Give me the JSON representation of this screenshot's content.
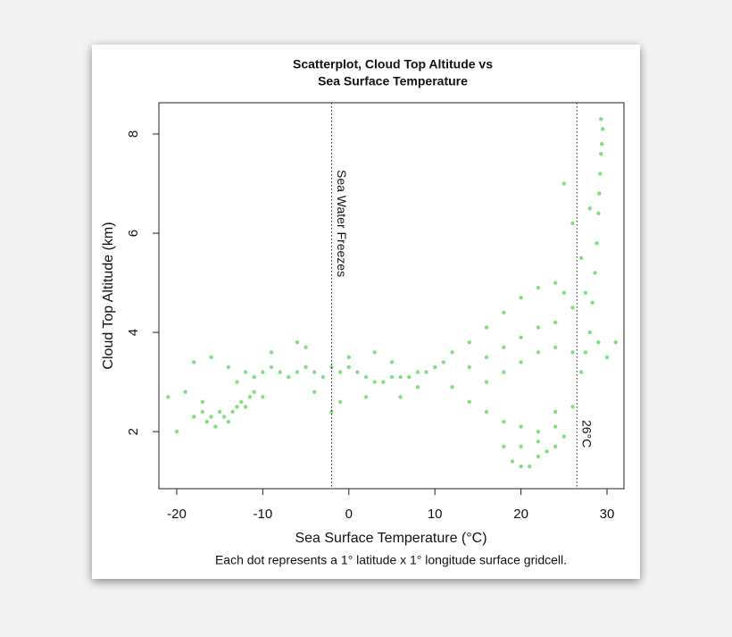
{
  "chart_data": {
    "type": "scatter",
    "title": [
      "Scatterplot, Cloud Top Altitude vs",
      "Sea Surface Temperature"
    ],
    "x_label": "Sea Surface Temperature (°C)",
    "y_label": "Cloud Top Altitude (km)",
    "caption": "Each dot represents a 1° latitude x 1° longitude surface gridcell.",
    "color": "#2ecc2e",
    "xlim": [
      -22.07,
      31.97
    ],
    "ylim": [
      0.85,
      8.63
    ],
    "xticks": [
      -20,
      -10,
      0,
      10,
      20,
      30
    ],
    "yticks": [
      2,
      4,
      6,
      8
    ],
    "grid": false,
    "reference_lines": [
      {
        "x": -2,
        "label": "Sea Water Freezes"
      },
      {
        "x": 26.5,
        "label": "26°C"
      }
    ],
    "x": [
      -18,
      -17,
      -16.5,
      -16,
      -15.5,
      -15,
      -14.5,
      -14,
      -13.5,
      -13,
      -12.5,
      -12,
      -11.5,
      -17,
      -19,
      -18,
      -16,
      -14,
      -11,
      -10,
      -13,
      -12,
      -11,
      -10,
      -9,
      -8,
      -7,
      -6,
      -5,
      -4,
      -3,
      -2,
      -1,
      0,
      1,
      2,
      3,
      4,
      5,
      6,
      7,
      8,
      9,
      10,
      11,
      -9,
      -5,
      0,
      3,
      6,
      -4,
      -1,
      2,
      -6,
      5,
      8,
      -2,
      12,
      14,
      16,
      18,
      20,
      22,
      24,
      25,
      26,
      14,
      16,
      18,
      20,
      22,
      24,
      16,
      18,
      20,
      22,
      24,
      26,
      12,
      14,
      16,
      18,
      20,
      22,
      24,
      26,
      18,
      19,
      20,
      21,
      22,
      23,
      24,
      25,
      20,
      22,
      24,
      27,
      27.5,
      28,
      28.3,
      28.6,
      28.8,
      29,
      29.1,
      29.2,
      29.3,
      29.4,
      29.5,
      29.3,
      28,
      27,
      26,
      25,
      27.5,
      29,
      30,
      31,
      -21,
      -20
    ],
    "values": [
      2.3,
      2.4,
      2.2,
      2.3,
      2.1,
      2.4,
      2.3,
      2.2,
      2.4,
      2.5,
      2.6,
      2.5,
      2.7,
      2.6,
      2.8,
      3.4,
      3.5,
      3.3,
      2.8,
      2.7,
      3.0,
      3.2,
      3.1,
      3.2,
      3.3,
      3.2,
      3.1,
      3.2,
      3.3,
      3.2,
      3.1,
      3.3,
      3.2,
      3.3,
      3.2,
      3.1,
      3.0,
      3.0,
      3.1,
      3.1,
      3.1,
      3.2,
      3.2,
      3.3,
      3.4,
      3.6,
      3.7,
      3.5,
      3.6,
      2.7,
      2.8,
      2.6,
      2.7,
      3.8,
      3.4,
      2.9,
      2.4,
      3.6,
      3.8,
      4.1,
      4.4,
      4.7,
      4.9,
      5.0,
      4.8,
      4.5,
      3.3,
      3.5,
      3.7,
      3.9,
      4.1,
      4.2,
      3.0,
      3.2,
      3.4,
      3.6,
      3.7,
      3.6,
      2.9,
      2.6,
      2.4,
      2.2,
      2.1,
      2.0,
      2.1,
      2.5,
      1.7,
      1.4,
      1.3,
      1.3,
      1.5,
      1.6,
      1.7,
      1.9,
      1.7,
      1.8,
      2.4,
      3.2,
      3.6,
      4.0,
      4.6,
      5.2,
      5.8,
      6.4,
      6.8,
      7.2,
      7.6,
      7.8,
      8.1,
      8.3,
      6.5,
      5.5,
      6.2,
      7.0,
      4.8,
      3.8,
      3.5,
      3.8,
      2.7,
      2.0
    ]
  }
}
